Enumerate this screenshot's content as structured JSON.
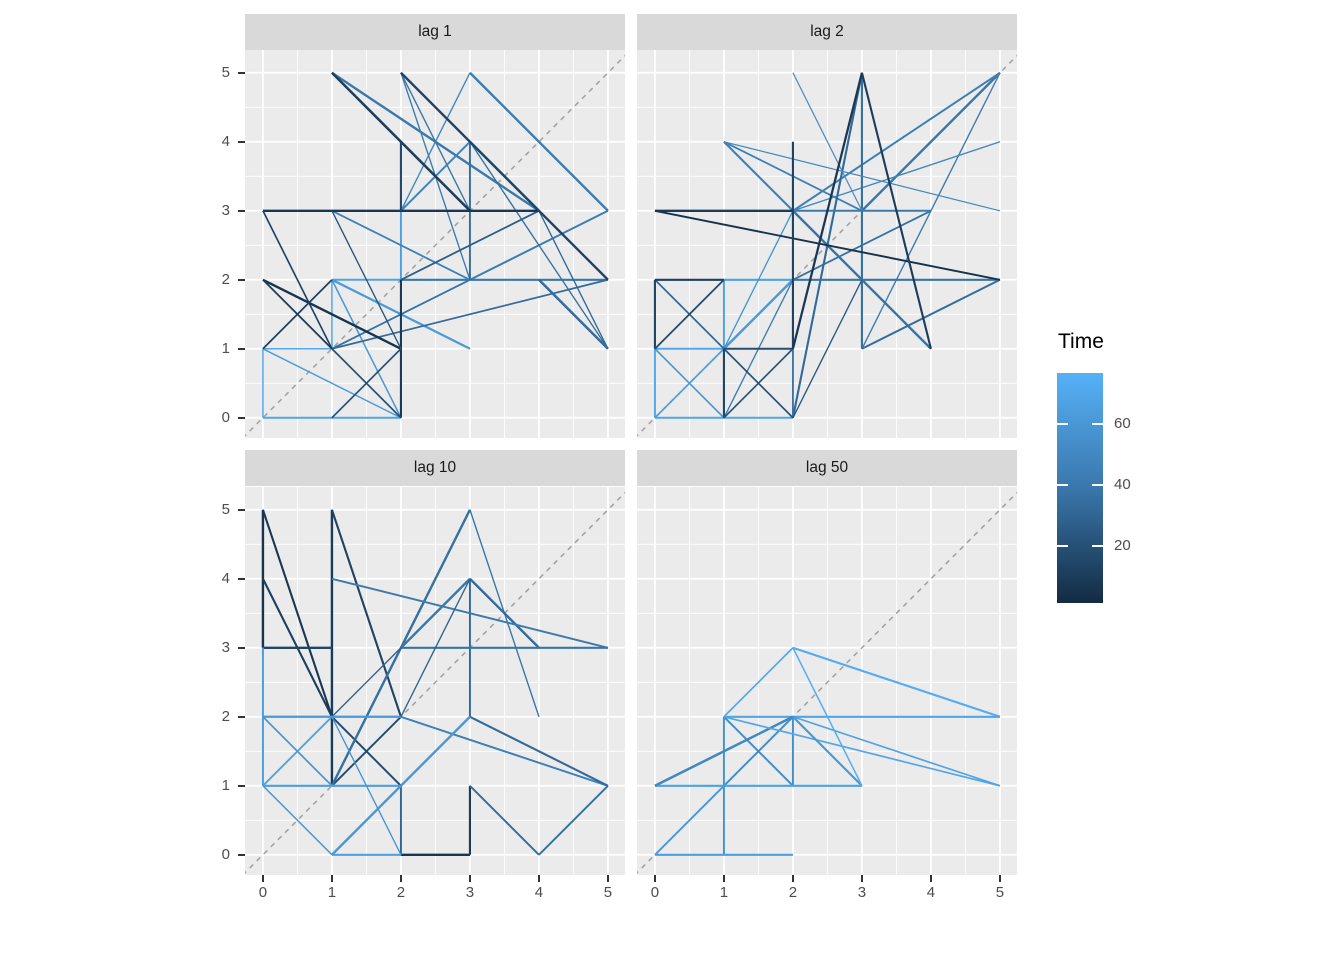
{
  "figure": {
    "background": "#FFFFFF",
    "panel_background": "#EBEBEB",
    "grid_color": "#FFFFFF",
    "strip_background": "#D9D9D9",
    "strip_text_color": "#1A1A1A",
    "axis_text_color": "#4D4D4D",
    "tick_mark_color": "#333333",
    "reference_line_color": "#A3A3A3"
  },
  "chart_data": {
    "type": "line",
    "subtype": "lag-plot-facets",
    "title": "",
    "xlabel": "",
    "ylabel": "",
    "x_ticks": [
      "0",
      "1",
      "2",
      "3",
      "4",
      "5"
    ],
    "y_ticks": [
      "0",
      "1",
      "2",
      "3",
      "4",
      "5"
    ],
    "x_range": [
      -0.26,
      5.25
    ],
    "y_range": [
      -0.29,
      5.33
    ],
    "grid": "on",
    "reference_line": "dashed y=x diagonal",
    "legend": {
      "title": "Time",
      "position": "right",
      "low_color": "#132B43",
      "high_color": "#56B1F7",
      "domain": [
        1,
        77
      ],
      "ticks": [
        {
          "label": "60",
          "value": 60
        },
        {
          "label": "40",
          "value": 40
        },
        {
          "label": "20",
          "value": 20
        }
      ]
    },
    "segment_format": "[x1, y1, x2, y2, time, widthScale] — colored by time on gradient #132B43 (t=1) to #56B1F7 (t=77)",
    "panels": [
      {
        "label": "lag 1",
        "segments": [
          [
            0,
            1,
            1,
            1,
            72,
            1
          ],
          [
            0,
            1,
            0,
            0,
            71,
            1
          ],
          [
            0,
            0,
            2,
            0,
            70,
            1.3
          ],
          [
            0,
            1,
            2,
            0,
            66,
            1
          ],
          [
            1,
            2,
            2,
            2,
            68,
            1.3
          ],
          [
            1,
            2,
            3,
            1,
            64,
            1.5
          ],
          [
            1,
            2,
            2,
            0,
            62,
            1
          ],
          [
            2,
            3,
            2,
            2,
            67,
            1.3
          ],
          [
            1,
            2,
            1,
            1,
            69,
            1
          ],
          [
            1,
            5,
            4,
            3,
            45,
            1.6
          ],
          [
            3,
            5,
            5,
            3,
            48,
            1.6
          ],
          [
            5,
            3,
            3,
            2,
            47,
            1.3
          ],
          [
            2,
            2,
            5,
            2,
            44,
            1.4
          ],
          [
            1,
            1,
            3,
            2,
            42,
            1.2
          ],
          [
            3,
            2,
            1,
            3,
            50,
            1.2
          ],
          [
            4,
            2,
            5,
            1,
            38,
            1.7
          ],
          [
            3,
            4,
            5,
            1,
            40,
            0.9
          ],
          [
            2,
            3,
            3,
            5,
            52,
            0.9
          ],
          [
            2,
            5,
            3,
            2,
            46,
            0.9
          ],
          [
            2,
            5,
            3,
            3,
            43,
            0.9
          ],
          [
            3,
            4,
            4,
            3,
            41,
            1.6
          ],
          [
            3,
            4,
            3,
            2,
            39,
            1.3
          ],
          [
            2,
            2,
            4,
            3,
            30,
            1.2
          ],
          [
            1,
            1,
            5,
            2,
            37,
            1.2
          ],
          [
            4,
            3,
            5,
            1,
            36,
            0.9
          ],
          [
            3,
            4,
            2,
            3,
            51,
            1.3
          ],
          [
            1,
            5,
            3,
            3,
            12,
            1.7
          ],
          [
            0,
            3,
            4,
            3,
            8,
            1.6
          ],
          [
            0,
            3,
            1,
            1,
            15,
            1.1
          ],
          [
            0,
            2,
            2,
            1,
            6,
            1.6
          ],
          [
            0,
            2,
            1,
            1,
            10,
            1.2
          ],
          [
            0,
            1,
            1,
            2,
            14,
            1.2
          ],
          [
            2,
            4,
            2,
            3,
            18,
            1.4
          ],
          [
            2,
            2,
            2,
            0,
            9,
            1.4
          ],
          [
            1,
            1,
            2,
            0,
            20,
            1.1
          ],
          [
            1,
            0,
            2,
            1,
            22,
            1.1
          ],
          [
            2,
            5,
            5,
            2,
            16,
            1.6
          ],
          [
            1,
            3,
            2,
            1,
            24,
            0.9
          ]
        ]
      },
      {
        "label": "lag 2",
        "segments": [
          [
            0,
            0,
            0,
            1,
            71,
            1.3
          ],
          [
            0,
            0,
            2,
            0,
            70,
            1.3
          ],
          [
            0,
            1,
            1,
            1,
            72,
            1.3
          ],
          [
            1,
            2,
            2,
            2,
            68,
            1.4
          ],
          [
            1,
            2,
            1,
            1,
            69,
            1.3
          ],
          [
            0,
            1,
            1,
            0,
            64,
            1.1
          ],
          [
            0,
            0,
            1,
            1,
            66,
            1.1
          ],
          [
            1,
            1,
            2,
            2,
            63,
            1.6
          ],
          [
            1,
            1,
            2,
            3,
            61,
            0.9
          ],
          [
            5,
            5,
            3,
            3,
            44,
            1.6
          ],
          [
            5,
            5,
            3,
            1,
            46,
            0.9
          ],
          [
            5,
            5,
            2,
            3,
            48,
            1.3
          ],
          [
            1,
            4,
            2,
            3,
            50,
            1.4
          ],
          [
            1,
            4,
            3,
            3,
            49,
            1.2
          ],
          [
            2,
            3,
            4,
            1,
            42,
            1.6
          ],
          [
            2,
            2,
            4,
            3,
            41,
            1.2
          ],
          [
            3,
            1,
            5,
            2,
            38,
            1.3
          ],
          [
            2,
            3,
            5,
            4,
            52,
            0.9
          ],
          [
            2,
            0,
            3,
            5,
            36,
            1.4
          ],
          [
            3,
            5,
            3,
            1,
            40,
            1.4
          ],
          [
            2,
            3,
            4,
            3,
            45,
            1.3
          ],
          [
            2,
            2,
            5,
            2,
            43,
            1.4
          ],
          [
            2,
            1,
            2,
            0,
            39,
            1.2
          ],
          [
            1,
            0,
            2,
            2,
            47,
            0.9
          ],
          [
            0,
            2,
            1,
            1,
            35,
            1.1
          ],
          [
            1,
            4,
            5,
            3,
            53,
            0.8
          ],
          [
            2,
            5,
            3,
            3,
            55,
            0.8
          ],
          [
            0,
            3,
            2,
            3,
            10,
            1.6
          ],
          [
            0,
            3,
            5,
            2,
            6,
            1.3
          ],
          [
            2,
            4,
            2,
            1,
            14,
            1.4
          ],
          [
            0,
            2,
            1,
            2,
            12,
            1.4
          ],
          [
            0,
            2,
            0,
            1,
            16,
            1.4
          ],
          [
            0,
            1,
            1,
            2,
            18,
            1.2
          ],
          [
            1,
            1,
            2,
            1,
            20,
            1.3
          ],
          [
            1,
            1,
            1,
            0,
            15,
            1.4
          ],
          [
            1,
            1,
            2,
            0,
            22,
            1.1
          ],
          [
            1,
            0,
            2,
            1,
            24,
            1.1
          ],
          [
            2,
            1,
            3,
            5,
            8,
            1.5
          ],
          [
            3,
            5,
            4,
            1,
            11,
            1.4
          ],
          [
            3,
            2,
            2,
            0,
            26,
            0.9
          ]
        ]
      },
      {
        "label": "lag 10",
        "segments": [
          [
            0,
            5,
            0,
            3,
            6,
            1.6
          ],
          [
            0,
            5,
            1,
            2,
            8,
            1.4
          ],
          [
            0,
            4,
            1,
            2,
            12,
            1.4
          ],
          [
            1,
            5,
            1,
            1,
            10,
            1.6
          ],
          [
            1,
            5,
            2,
            2,
            14,
            1.4
          ],
          [
            0,
            3,
            1,
            3,
            16,
            1.6
          ],
          [
            1,
            2,
            2,
            1,
            18,
            1.3
          ],
          [
            1,
            1,
            2,
            2,
            20,
            1.3
          ],
          [
            3,
            1,
            3,
            0,
            9,
            1.4
          ],
          [
            2,
            0,
            3,
            0,
            7,
            1.6
          ],
          [
            3,
            5,
            1,
            1,
            40,
            1.6
          ],
          [
            3,
            5,
            4,
            2,
            42,
            0.9
          ],
          [
            3,
            4,
            2,
            3,
            44,
            1.6
          ],
          [
            3,
            4,
            4,
            3,
            38,
            1.6
          ],
          [
            3,
            4,
            3,
            2,
            36,
            1.3
          ],
          [
            1,
            4,
            5,
            3,
            46,
            1.3
          ],
          [
            2,
            3,
            5,
            3,
            43,
            1.4
          ],
          [
            2,
            2,
            5,
            1,
            50,
            1.3
          ],
          [
            3,
            2,
            5,
            1,
            37,
            1.4
          ],
          [
            3,
            1,
            4,
            0,
            39,
            1.3
          ],
          [
            4,
            0,
            5,
            1,
            41,
            1.3
          ],
          [
            2,
            1,
            2,
            0,
            35,
            1.3
          ],
          [
            2,
            2,
            3,
            4,
            33,
            0.9
          ],
          [
            2,
            3,
            1,
            2,
            31,
            0.9
          ],
          [
            0,
            3,
            0,
            1,
            65,
            1.3
          ],
          [
            0,
            2,
            2,
            2,
            63,
            1.5
          ],
          [
            0,
            2,
            1,
            1,
            64,
            1.2
          ],
          [
            0,
            1,
            1,
            2,
            67,
            1.2
          ],
          [
            0,
            1,
            2,
            1,
            66,
            1.4
          ],
          [
            1,
            0,
            3,
            2,
            62,
            1.6
          ],
          [
            1,
            0,
            2,
            0,
            68,
            1.4
          ],
          [
            0,
            1,
            1,
            0,
            61,
            1
          ],
          [
            1,
            2,
            2,
            0,
            60,
            0.9
          ]
        ]
      },
      {
        "label": "lag 50",
        "segments": [
          [
            2,
            3,
            5,
            2,
            74,
            1.4
          ],
          [
            1,
            2,
            5,
            2,
            70,
            1.4
          ],
          [
            1,
            2,
            1,
            1,
            60,
            1.3
          ],
          [
            2,
            2,
            2,
            1,
            58,
            1.3
          ],
          [
            1,
            2,
            2,
            1,
            56,
            1.3
          ],
          [
            1,
            1,
            2,
            2,
            57,
            1.3
          ],
          [
            0,
            1,
            3,
            1,
            68,
            1.4
          ],
          [
            0,
            1,
            2,
            2,
            54,
            1.7
          ],
          [
            2,
            3,
            1,
            2,
            72,
            1.1
          ],
          [
            1,
            2,
            5,
            1,
            71,
            1.1
          ],
          [
            2,
            2,
            5,
            1,
            69,
            1.1
          ],
          [
            2,
            2,
            3,
            1,
            62,
            1.4
          ],
          [
            2,
            3,
            3,
            1,
            75,
            1
          ],
          [
            1,
            1,
            1,
            0,
            59,
            1.3
          ],
          [
            0,
            0,
            1,
            1,
            64,
            1.3
          ],
          [
            0,
            0,
            2,
            0,
            66,
            1.4
          ]
        ]
      }
    ]
  }
}
